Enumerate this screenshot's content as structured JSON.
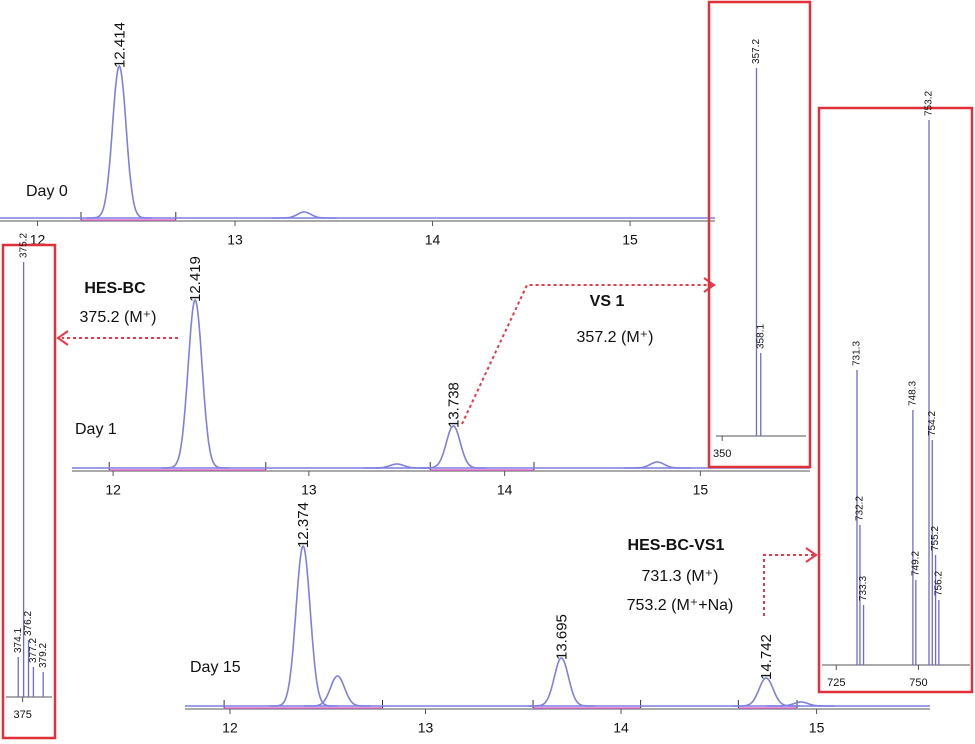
{
  "chromatograms": [
    {
      "label": "Day 0",
      "xlim": [
        11.81,
        15.43
      ],
      "xticks": [
        12,
        13,
        14,
        15
      ],
      "peaks": [
        {
          "rt": 12.414,
          "label": "12.414",
          "height": 152
        },
        {
          "rt": 13.35,
          "height": 6
        }
      ]
    },
    {
      "label": "Day 1",
      "xlim": [
        11.79,
        15.56
      ],
      "xticks": [
        12,
        13,
        14,
        15
      ],
      "peaks": [
        {
          "rt": 12.419,
          "label": "12.419",
          "height": 168
        },
        {
          "rt": 13.738,
          "label": "13.738",
          "height": 42
        },
        {
          "rt": 13.45,
          "height": 4
        },
        {
          "rt": 14.78,
          "height": 6
        }
      ]
    },
    {
      "label": "Day 15",
      "xlim": [
        11.77,
        15.58
      ],
      "xticks": [
        12,
        13,
        14,
        15
      ],
      "peaks": [
        {
          "rt": 12.374,
          "label": "12.374",
          "height": 160
        },
        {
          "rt": 12.55,
          "height": 30
        },
        {
          "rt": 13.695,
          "label": "13.695",
          "height": 48
        },
        {
          "rt": 14.742,
          "label": "14.742",
          "height": 28
        },
        {
          "rt": 14.92,
          "height": 4
        }
      ]
    }
  ],
  "spectra": [
    {
      "xlim": [
        348.7,
        367.6
      ],
      "xticks": [
        350
      ],
      "peaks": [
        {
          "mz": 357.2,
          "label": "357.2",
          "height": 368
        },
        {
          "mz": 358.1,
          "label": "358.1",
          "height": 83
        }
      ]
    },
    {
      "xlim": [
        371.6,
        381
      ],
      "xticks": [
        375
      ],
      "peaks": [
        {
          "mz": 375.2,
          "label": "375.2",
          "height": 435
        },
        {
          "mz": 374.1,
          "label": "374.1",
          "height": 40
        },
        {
          "mz": 376.2,
          "label": "376.2",
          "height": 57
        },
        {
          "mz": 377.2,
          "label": "377.2",
          "height": 30
        },
        {
          "mz": 379.2,
          "label": "379.2",
          "height": 25
        }
      ]
    },
    {
      "xlim": [
        720.66,
        765.67
      ],
      "xticks": [
        725,
        750
      ],
      "peaks": [
        {
          "mz": 731.3,
          "label": "731.3",
          "height": 295
        },
        {
          "mz": 732.2,
          "label": "732.2",
          "height": 140
        },
        {
          "mz": 733.3,
          "label": "733.3",
          "height": 60
        },
        {
          "mz": 748.3,
          "label": "748.3",
          "height": 255
        },
        {
          "mz": 749.2,
          "label": "749.2",
          "height": 85
        },
        {
          "mz": 753.2,
          "label": "753.2",
          "height": 545
        },
        {
          "mz": 754.2,
          "label": "754.2",
          "height": 225
        },
        {
          "mz": 755.2,
          "label": "755.2",
          "height": 110
        },
        {
          "mz": 756.2,
          "label": "756.2",
          "height": 65
        }
      ]
    }
  ],
  "annotations": [
    {
      "title": "HES-BC",
      "lines": [
        "375.2 (M⁺)"
      ]
    },
    {
      "title": "VS 1",
      "lines": [
        "357.2 (M⁺)"
      ]
    },
    {
      "title": "HES-BC-VS1",
      "lines": [
        "731.3 (M⁺)",
        "753.2 (M⁺+Na)"
      ]
    }
  ]
}
